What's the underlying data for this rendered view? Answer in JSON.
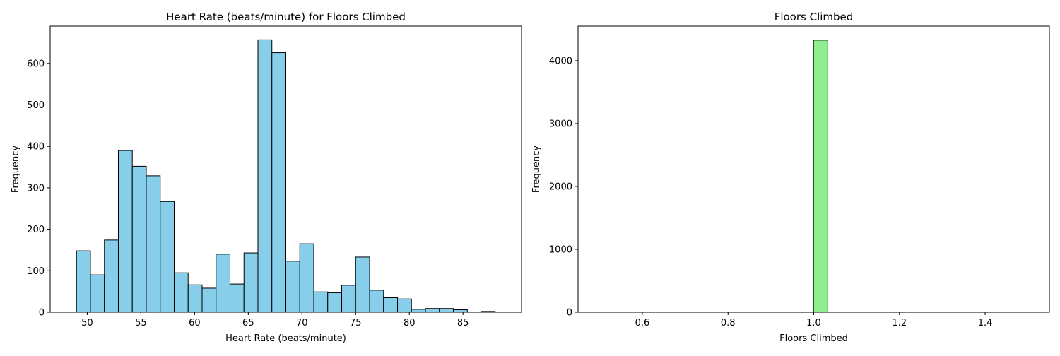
{
  "chart_data": [
    {
      "type": "bar",
      "title": "Heart Rate (beats/minute) for Floors Climbed",
      "xlabel": "Heart Rate (beats/minute)",
      "ylabel": "Frequency",
      "xlim": [
        46.55,
        90.45
      ],
      "ylim": [
        0,
        690
      ],
      "xticks": [
        50,
        55,
        60,
        65,
        70,
        75,
        80,
        85
      ],
      "yticks": [
        0,
        100,
        200,
        300,
        400,
        500,
        600
      ],
      "grid": false,
      "bar_color": "#87ceeb",
      "edge_color": "#000000",
      "bin_start": 49,
      "bin_width": 1.3,
      "values": [
        148,
        90,
        174,
        390,
        352,
        329,
        267,
        95,
        66,
        58,
        140,
        68,
        143,
        657,
        626,
        123,
        165,
        49,
        47,
        65,
        133,
        53,
        35,
        32,
        7,
        9,
        9,
        6,
        0,
        2
      ]
    },
    {
      "type": "bar",
      "title": "Floors Climbed",
      "xlabel": "Floors Climbed",
      "ylabel": "Frequency",
      "xlim": [
        0.45,
        1.55
      ],
      "ylim": [
        0,
        4550
      ],
      "xticks": [
        "0.6",
        "0.8",
        "1.0",
        "1.2",
        "1.4"
      ],
      "xtick_values": [
        0.6,
        0.8,
        1.0,
        1.2,
        1.4
      ],
      "yticks": [
        0,
        1000,
        2000,
        3000,
        4000
      ],
      "grid": false,
      "bar_color": "#90ee90",
      "edge_color": "#000000",
      "bin_start": 0.5,
      "bin_width": 0.0333,
      "values": [
        0,
        0,
        0,
        0,
        0,
        0,
        0,
        0,
        0,
        0,
        0,
        0,
        0,
        0,
        0,
        4327,
        0,
        0,
        0,
        0,
        0,
        0,
        0,
        0,
        0,
        0,
        0,
        0,
        0,
        0
      ]
    }
  ]
}
